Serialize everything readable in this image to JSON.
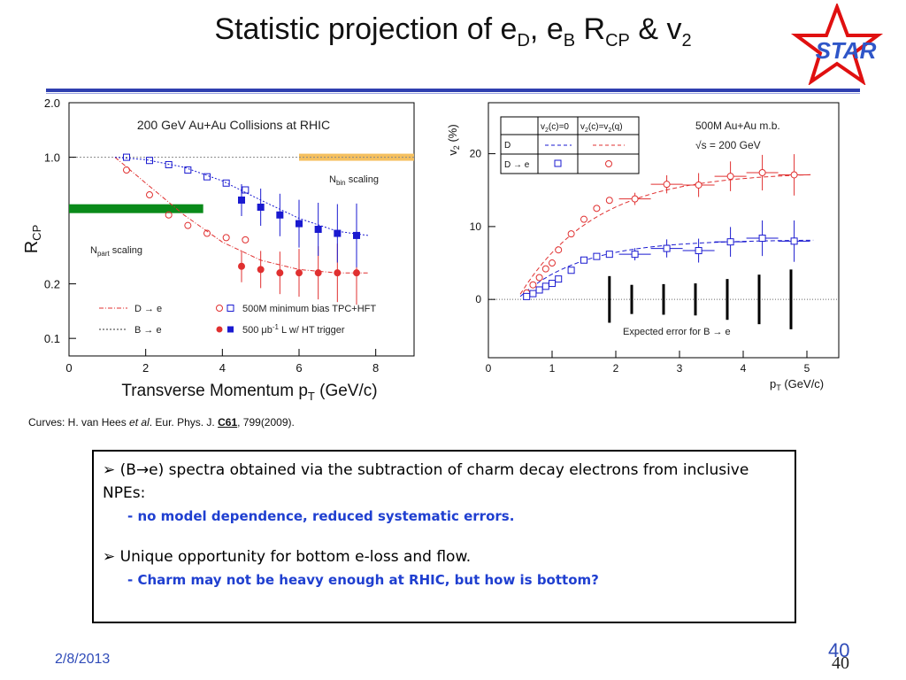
{
  "slide": {
    "title_main": "Statistic projection of e",
    "title_sub1": "D",
    "title_mid": ", e",
    "title_sub2": "B",
    "title_r": " R",
    "title_sub3": "CP",
    "title_tail": " & v",
    "title_sub4": "2",
    "logo_text": "STAR",
    "curves_note_prefix": "Curves:  H. van Hees ",
    "curves_note_etal": "et al",
    "curves_note_journal": ".  Eur. Phys. J. ",
    "curves_note_vol": "C61",
    "curves_note_tail": ", 799(2009).",
    "bullet1": "➢ (B→e) spectra obtained via the subtraction of charm decay electrons from inclusive NPEs:",
    "bullet1_sub": "- no model dependence, reduced systematic errors.",
    "bullet2": "➢ Unique opportunity for bottom e-loss and flow.",
    "bullet2_sub": "- Charm may not be heavy enough at RHIC, but how is bottom?",
    "date": "2/8/2013",
    "page": "40",
    "page2": "40"
  },
  "colors": {
    "accent": "#2f3fb0",
    "red": "#e03030",
    "blue": "#1a1ad0",
    "green": "#0a8a1a",
    "orange": "#f5c060"
  },
  "chart_data": [
    {
      "type": "scatter",
      "title": "200 GeV Au+Au Collisions at RHIC",
      "xlabel": "Transverse Momentum p",
      "xlabel_sub": "T",
      "xlabel_unit": " (GeV/c)",
      "ylabel": "R",
      "ylabel_sub": "CP",
      "xlim": [
        0,
        9
      ],
      "ylim": [
        0.08,
        2.0
      ],
      "yscale": "log",
      "xticks": [
        "0",
        "2",
        "4",
        "6",
        "8"
      ],
      "yticks": [
        "2.0",
        "1.0",
        "0.2",
        "0.1"
      ],
      "band_npart": "N",
      "band_npart_sub": "part",
      "band_npart_tail": " scaling",
      "band_nbin": "N",
      "band_nbin_sub": "bin",
      "band_nbin_tail": " scaling",
      "legend": {
        "d_line": "D → e",
        "b_line": "B → e",
        "open_label": "500M minimum bias TPC+HFT",
        "filled_label": "500 μb",
        "filled_sup": "-1",
        "filled_tail": " L w/ HT trigger"
      },
      "series": [
        {
          "name": "D → e (open)",
          "x": [
            1.5,
            2.1,
            2.6,
            3.1,
            3.6,
            4.1,
            4.6
          ],
          "y": [
            0.85,
            0.62,
            0.48,
            0.42,
            0.38,
            0.36,
            0.35
          ]
        },
        {
          "name": "B → e (open)",
          "x": [
            1.5,
            2.1,
            2.6,
            3.1,
            3.6,
            4.1,
            4.6
          ],
          "y": [
            1.0,
            0.96,
            0.91,
            0.85,
            0.78,
            0.72,
            0.66
          ]
        },
        {
          "name": "D → e (filled)",
          "x": [
            4.5,
            5.0,
            5.5,
            6.0,
            6.5,
            7.0,
            7.5
          ],
          "y": [
            0.25,
            0.24,
            0.23,
            0.23,
            0.23,
            0.23,
            0.23
          ]
        },
        {
          "name": "B → e (filled)",
          "x": [
            4.5,
            5.0,
            5.5,
            6.0,
            6.5,
            7.0,
            7.5
          ],
          "y": [
            0.58,
            0.53,
            0.48,
            0.43,
            0.4,
            0.38,
            0.37
          ]
        }
      ]
    },
    {
      "type": "scatter",
      "xlabel": "p",
      "xlabel_sub": "T",
      "xlabel_unit": " (GeV/c)",
      "ylabel": "v",
      "ylabel_sub": "2",
      "ylabel_unit": " (%)",
      "xlim": [
        0,
        5.5
      ],
      "ylim": [
        -8,
        27
      ],
      "xticks": [
        "0",
        "1",
        "2",
        "3",
        "4",
        "5"
      ],
      "yticks": [
        "0",
        "10",
        "20"
      ],
      "annotation": "500M Au+Au m.b.",
      "annotation2": "√s = 200 GeV",
      "expected_label": "Expected error for B → e",
      "table": {
        "headers": [
          "",
          "v",
          "v"
        ],
        "h1_sub": "2",
        "h1_tail": "(c)=0",
        "h2_sub": "2",
        "h2_tail": "(c)=v",
        "h2_sub2": "2",
        "h2_end": "(q)",
        "rows": [
          "D",
          "D → e"
        ]
      },
      "series": [
        {
          "name": "v2(c)=v2(q)",
          "x": [
            0.6,
            0.7,
            0.8,
            0.9,
            1.0,
            1.1,
            1.3,
            1.5,
            1.7,
            1.9,
            2.3,
            2.8,
            3.3,
            3.8,
            4.3,
            4.8
          ],
          "y": [
            0.9,
            2,
            3,
            4.2,
            5,
            6.8,
            9,
            11,
            12.5,
            13.6,
            13.8,
            15.8,
            15.7,
            16.9,
            17.4,
            17.1
          ]
        },
        {
          "name": "v2(c)=0",
          "x": [
            0.6,
            0.7,
            0.8,
            0.9,
            1.0,
            1.1,
            1.3,
            1.5,
            1.7,
            1.9,
            2.3,
            2.8,
            3.3,
            3.8,
            4.3,
            4.8
          ],
          "y": [
            0.4,
            0.8,
            1.3,
            1.8,
            2.2,
            2.8,
            4,
            5.4,
            5.9,
            6.2,
            6.2,
            7,
            6.7,
            7.9,
            8.4,
            8
          ]
        }
      ],
      "expected_error": {
        "x": [
          1.9,
          2.25,
          2.75,
          3.25,
          3.75,
          4.25,
          4.75
        ],
        "half_width": [
          3.2,
          2,
          2.1,
          2.2,
          2.8,
          3.4,
          4.1
        ],
        "center": [
          0,
          0,
          0,
          0,
          0,
          0,
          0
        ]
      }
    }
  ]
}
